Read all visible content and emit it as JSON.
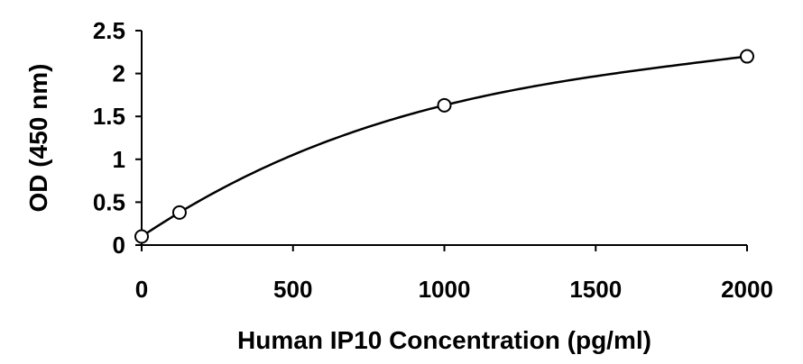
{
  "chart_data": {
    "type": "scatter",
    "title": "",
    "xlabel": "Human IP10 Concentration (pg/ml)",
    "ylabel": "OD (450 nm)",
    "xlim": [
      0,
      2000
    ],
    "ylim": [
      0,
      2.5
    ],
    "x_ticks": [
      0,
      500,
      1000,
      1500,
      2000
    ],
    "x_tick_labels": [
      "0",
      "500",
      "1000",
      "1500",
      "2000"
    ],
    "y_ticks": [
      0,
      0.5,
      1,
      1.5,
      2,
      2.5
    ],
    "y_tick_labels": [
      "0",
      "0.5",
      "1",
      "1.5",
      "2",
      "2.5"
    ],
    "grid": false,
    "legend": "none",
    "series": [
      {
        "marker": "open-circle",
        "line": "smooth-fit",
        "color": "#000000",
        "x": [
          0,
          125,
          1000,
          2000
        ],
        "y": [
          0.1,
          0.38,
          1.63,
          2.2
        ]
      }
    ]
  }
}
